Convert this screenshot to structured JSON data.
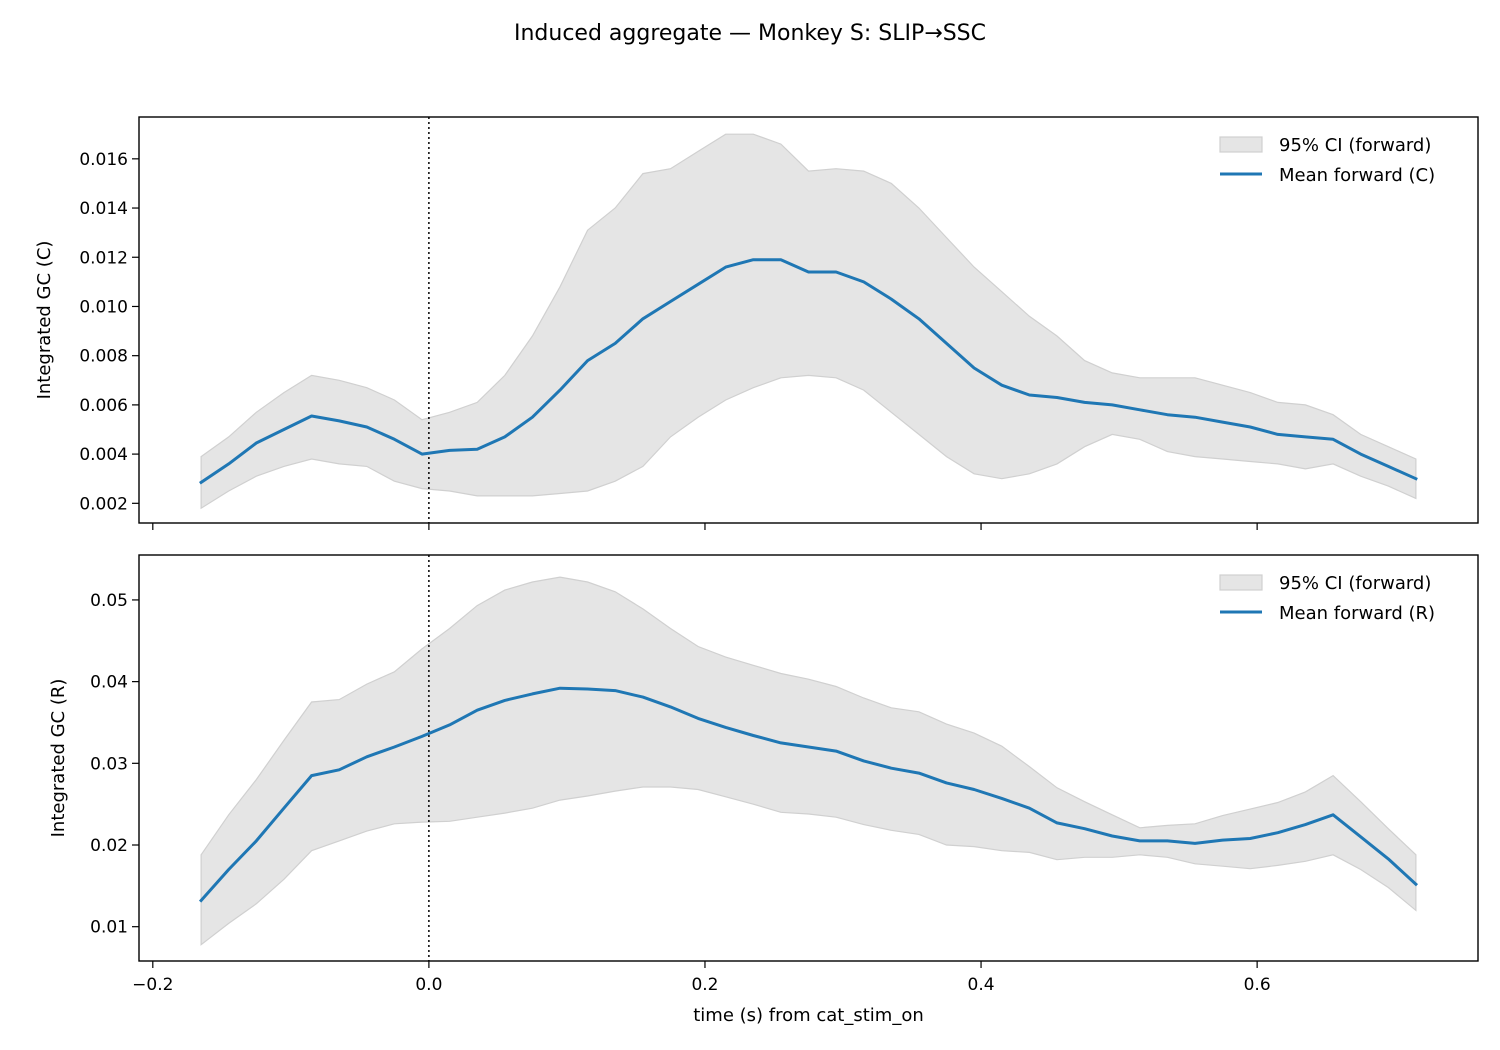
{
  "title": "Induced aggregate — Monkey S: SLIP→SSC",
  "colors": {
    "mean_line": "#1f77b4",
    "ci_fill": "#e5e5e5",
    "ci_edge": "#d0d0d0",
    "axes": "#000000"
  },
  "chart_data": [
    {
      "type": "line",
      "ylabel": "Integrated GC (C)",
      "xlabel": "",
      "xlim": [
        -0.21,
        0.76
      ],
      "ylim": [
        0.0012,
        0.0177
      ],
      "xticks": [
        -0.2,
        0.0,
        0.2,
        0.4,
        0.6
      ],
      "xtick_labels": [
        "",
        "",
        "",
        "",
        ""
      ],
      "yticks": [
        0.002,
        0.004,
        0.006,
        0.008,
        0.01,
        0.012,
        0.014,
        0.016
      ],
      "ytick_labels": [
        "0.002",
        "0.004",
        "0.006",
        "0.008",
        "0.010",
        "0.012",
        "0.014",
        "0.016"
      ],
      "vline_x": 0.0,
      "legend_position": "top-right",
      "legend": [
        "95% CI (forward)",
        "Mean forward (C)"
      ],
      "x": [
        -0.165,
        -0.145,
        -0.125,
        -0.105,
        -0.085,
        -0.065,
        -0.045,
        -0.025,
        -0.005,
        0.015,
        0.035,
        0.055,
        0.075,
        0.095,
        0.115,
        0.135,
        0.155,
        0.175,
        0.195,
        0.215,
        0.235,
        0.255,
        0.275,
        0.295,
        0.315,
        0.335,
        0.355,
        0.375,
        0.395,
        0.415,
        0.435,
        0.455,
        0.475,
        0.495,
        0.515,
        0.535,
        0.555,
        0.575,
        0.595,
        0.615,
        0.635,
        0.655,
        0.675,
        0.695,
        0.715
      ],
      "series": [
        {
          "name": "Mean forward (C)",
          "values": [
            0.00285,
            0.0036,
            0.00445,
            0.005,
            0.00555,
            0.00535,
            0.0051,
            0.0046,
            0.004,
            0.00415,
            0.0042,
            0.0047,
            0.0055,
            0.0066,
            0.0078,
            0.0085,
            0.0095,
            0.0102,
            0.0109,
            0.0116,
            0.0119,
            0.0119,
            0.0114,
            0.0114,
            0.011,
            0.0103,
            0.0095,
            0.0085,
            0.0075,
            0.0068,
            0.0064,
            0.0063,
            0.0061,
            0.006,
            0.0058,
            0.0056,
            0.0055,
            0.0053,
            0.0051,
            0.0048,
            0.0047,
            0.0046,
            0.004,
            0.0035,
            0.003
          ]
        },
        {
          "name": "95% CI (forward)",
          "upper": [
            0.0039,
            0.0047,
            0.0057,
            0.0065,
            0.0072,
            0.007,
            0.0067,
            0.0062,
            0.0054,
            0.0057,
            0.0061,
            0.0072,
            0.0088,
            0.0108,
            0.0131,
            0.014,
            0.0154,
            0.0156,
            0.0163,
            0.017,
            0.017,
            0.0166,
            0.0155,
            0.0156,
            0.0155,
            0.015,
            0.014,
            0.0128,
            0.0116,
            0.0106,
            0.0096,
            0.0088,
            0.0078,
            0.0073,
            0.0071,
            0.0071,
            0.0071,
            0.0068,
            0.0065,
            0.0061,
            0.006,
            0.0056,
            0.0048,
            0.0043,
            0.0038
          ],
          "lower": [
            0.0018,
            0.0025,
            0.0031,
            0.0035,
            0.0038,
            0.0036,
            0.0035,
            0.0029,
            0.0026,
            0.0025,
            0.0023,
            0.0023,
            0.0023,
            0.0024,
            0.0025,
            0.0029,
            0.0035,
            0.0047,
            0.0055,
            0.0062,
            0.0067,
            0.0071,
            0.0072,
            0.0071,
            0.0066,
            0.0057,
            0.0048,
            0.0039,
            0.0032,
            0.003,
            0.0032,
            0.0036,
            0.0043,
            0.0048,
            0.0046,
            0.0041,
            0.0039,
            0.0038,
            0.0037,
            0.0036,
            0.0034,
            0.0036,
            0.0031,
            0.0027,
            0.0022
          ]
        }
      ]
    },
    {
      "type": "line",
      "ylabel": "Integrated GC (R)",
      "xlabel": "time (s) from cat_stim_on",
      "xlim": [
        -0.21,
        0.76
      ],
      "ylim": [
        0.0058,
        0.0555
      ],
      "xticks": [
        -0.2,
        0.0,
        0.2,
        0.4,
        0.6
      ],
      "xtick_labels": [
        "−0.2",
        "0.0",
        "0.2",
        "0.4",
        "0.6"
      ],
      "yticks": [
        0.01,
        0.02,
        0.03,
        0.04,
        0.05
      ],
      "ytick_labels": [
        "0.01",
        "0.02",
        "0.03",
        "0.04",
        "0.05"
      ],
      "vline_x": 0.0,
      "legend_position": "top-right",
      "legend": [
        "95% CI (forward)",
        "Mean forward (R)"
      ],
      "x": [
        -0.165,
        -0.145,
        -0.125,
        -0.105,
        -0.085,
        -0.065,
        -0.045,
        -0.025,
        -0.005,
        0.015,
        0.035,
        0.055,
        0.075,
        0.095,
        0.115,
        0.135,
        0.155,
        0.175,
        0.195,
        0.215,
        0.235,
        0.255,
        0.275,
        0.295,
        0.315,
        0.335,
        0.355,
        0.375,
        0.395,
        0.415,
        0.435,
        0.455,
        0.475,
        0.495,
        0.515,
        0.535,
        0.555,
        0.575,
        0.595,
        0.615,
        0.635,
        0.655,
        0.675,
        0.695,
        0.715
      ],
      "series": [
        {
          "name": "Mean forward (R)",
          "values": [
            0.0132,
            0.017,
            0.0205,
            0.0245,
            0.0285,
            0.0292,
            0.0308,
            0.032,
            0.0333,
            0.0347,
            0.0365,
            0.0377,
            0.0385,
            0.0392,
            0.0391,
            0.0389,
            0.0381,
            0.0369,
            0.0355,
            0.0344,
            0.0334,
            0.0325,
            0.032,
            0.0315,
            0.0303,
            0.0294,
            0.0288,
            0.0276,
            0.0268,
            0.0257,
            0.0245,
            0.0227,
            0.022,
            0.0211,
            0.0205,
            0.0205,
            0.0202,
            0.0206,
            0.0208,
            0.0215,
            0.0225,
            0.0237,
            0.021,
            0.0183,
            0.0152
          ]
        },
        {
          "name": "95% CI (forward)",
          "upper": [
            0.0188,
            0.0237,
            0.028,
            0.0328,
            0.0375,
            0.0378,
            0.0397,
            0.0412,
            0.044,
            0.0465,
            0.0493,
            0.0512,
            0.0522,
            0.0528,
            0.0522,
            0.051,
            0.0489,
            0.0465,
            0.0443,
            0.043,
            0.042,
            0.041,
            0.0403,
            0.0394,
            0.038,
            0.0368,
            0.0363,
            0.0348,
            0.0337,
            0.0321,
            0.0296,
            0.027,
            0.0253,
            0.0237,
            0.0221,
            0.0224,
            0.0226,
            0.0236,
            0.0244,
            0.0252,
            0.0265,
            0.0285,
            0.0253,
            0.022,
            0.0188
          ],
          "lower": [
            0.0078,
            0.0104,
            0.0128,
            0.0158,
            0.0193,
            0.0205,
            0.0217,
            0.0226,
            0.0228,
            0.0229,
            0.0234,
            0.0239,
            0.0245,
            0.0255,
            0.026,
            0.0266,
            0.0271,
            0.0271,
            0.0268,
            0.0259,
            0.025,
            0.024,
            0.0238,
            0.0234,
            0.0225,
            0.0218,
            0.0213,
            0.02,
            0.0198,
            0.0193,
            0.0191,
            0.0182,
            0.0185,
            0.0185,
            0.0188,
            0.0185,
            0.0177,
            0.0174,
            0.0171,
            0.0175,
            0.018,
            0.0188,
            0.017,
            0.0148,
            0.012
          ]
        }
      ]
    }
  ]
}
